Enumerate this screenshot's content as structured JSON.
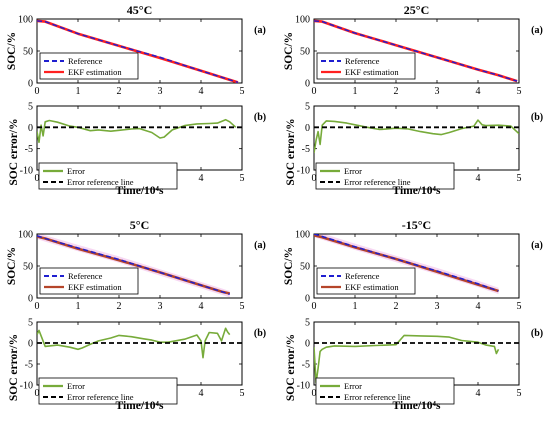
{
  "colors": {
    "reference": "#1f1fd0",
    "ekf_red": "#ff2020",
    "ekf_brown": "#b5452a",
    "error": "#77ab3a",
    "error_ref": "#000000",
    "band": "#f7d8f3"
  },
  "chart_data": [
    {
      "id": "soc_45",
      "type": "line",
      "title": "45°C",
      "tag": "(a)",
      "xlabel": "",
      "ylabel": "SOC/%",
      "xlim": [
        0,
        5
      ],
      "ylim": [
        0,
        100
      ],
      "xticks": [
        "0",
        "1",
        "2",
        "3",
        "4",
        "5"
      ],
      "yticks": [
        "0",
        "50",
        "100"
      ],
      "legend": "bottom-left",
      "grid": false,
      "band": false,
      "series": [
        {
          "name": "Reference",
          "style": "dashed",
          "color": "#1f1fd0",
          "x": [
            0,
            0.2,
            1,
            2,
            3,
            4,
            4.5,
            4.9
          ],
          "y": [
            97,
            96,
            77,
            58,
            40,
            19,
            9,
            1
          ]
        },
        {
          "name": "EKF estimation",
          "style": "solid",
          "color": "#ff2020",
          "x": [
            0,
            0.2,
            1,
            2,
            3,
            4,
            4.5,
            4.9
          ],
          "y": [
            97,
            96,
            77,
            58,
            39,
            19,
            9,
            1
          ]
        }
      ]
    },
    {
      "id": "err_45",
      "type": "line",
      "title": "",
      "tag": "(b)",
      "xlabel": "Time/10⁴s",
      "ylabel": "SOC error/%",
      "xlim": [
        0,
        5
      ],
      "ylim": [
        -10,
        5
      ],
      "xticks": [
        "0",
        "1",
        "2",
        "3",
        "4",
        "5"
      ],
      "yticks": [
        "-10",
        "-5",
        "0",
        "5"
      ],
      "legend": "bottom-left",
      "grid": false,
      "series": [
        {
          "name": "Error",
          "style": "solid",
          "color": "#77ab3a",
          "x": [
            0,
            0.05,
            0.1,
            0.15,
            0.2,
            0.3,
            0.5,
            0.8,
            1.0,
            1.3,
            1.5,
            1.8,
            2.0,
            2.3,
            2.5,
            2.8,
            3.0,
            3.1,
            3.3,
            3.6,
            3.9,
            4.2,
            4.4,
            4.6,
            4.7,
            4.85
          ],
          "y": [
            -1,
            -3.5,
            0.5,
            -2,
            1.3,
            1.6,
            1.2,
            0.3,
            0,
            -0.8,
            -0.6,
            -0.9,
            -0.7,
            -0.4,
            -0.3,
            -1.2,
            -2.5,
            -2.3,
            -0.6,
            0.4,
            0.8,
            0.9,
            1.0,
            1.8,
            1.3,
            0
          ]
        },
        {
          "name": "Error reference line",
          "style": "dashed",
          "color": "#000000",
          "x": [
            0,
            5
          ],
          "y": [
            0,
            0
          ]
        }
      ]
    },
    {
      "id": "soc_25",
      "type": "line",
      "title": "25°C",
      "tag": "(a)",
      "xlabel": "",
      "ylabel": "SOC/%",
      "xlim": [
        0,
        5
      ],
      "ylim": [
        0,
        100
      ],
      "xticks": [
        "0",
        "1",
        "2",
        "3",
        "4",
        "5"
      ],
      "yticks": [
        "0",
        "50",
        "100"
      ],
      "legend": "bottom-left",
      "grid": false,
      "band": false,
      "series": [
        {
          "name": "Reference",
          "style": "dashed",
          "color": "#1f1fd0",
          "x": [
            0,
            0.2,
            1,
            2,
            3,
            4,
            4.5,
            4.95
          ],
          "y": [
            97,
            96,
            78,
            59,
            40,
            21,
            12,
            3
          ]
        },
        {
          "name": "EKF estimation",
          "style": "solid",
          "color": "#ff2020",
          "x": [
            0,
            0.2,
            1,
            2,
            3,
            4,
            4.5,
            4.95
          ],
          "y": [
            97,
            96,
            78,
            59,
            40,
            21,
            12,
            3
          ]
        }
      ]
    },
    {
      "id": "err_25",
      "type": "line",
      "title": "",
      "tag": "(b)",
      "xlabel": "Time/10⁴s",
      "ylabel": "SOC error/%",
      "xlim": [
        0,
        5
      ],
      "ylim": [
        -10,
        5
      ],
      "xticks": [
        "0",
        "1",
        "2",
        "3",
        "4",
        "5"
      ],
      "yticks": [
        "-10",
        "-5",
        "0",
        "5"
      ],
      "legend": "bottom-left",
      "grid": false,
      "series": [
        {
          "name": "Error",
          "style": "solid",
          "color": "#77ab3a",
          "x": [
            0,
            0.05,
            0.1,
            0.15,
            0.2,
            0.3,
            0.5,
            0.8,
            1.0,
            1.3,
            1.6,
            2.0,
            2.3,
            2.6,
            2.9,
            3.1,
            3.3,
            3.6,
            3.9,
            4.0,
            4.1,
            4.2,
            4.5,
            4.8,
            5.0
          ],
          "y": [
            -6,
            -3,
            -1,
            -4,
            0.5,
            1.5,
            1.4,
            1.0,
            0.6,
            0,
            -0.5,
            -0.2,
            -0.4,
            -1.0,
            -1.5,
            -1.7,
            -1.2,
            -0.3,
            0.3,
            1.7,
            0.6,
            0.4,
            0.5,
            0.3,
            -1.5
          ]
        },
        {
          "name": "Error reference line",
          "style": "dashed",
          "color": "#000000",
          "x": [
            0,
            5
          ],
          "y": [
            0,
            0
          ]
        }
      ]
    },
    {
      "id": "soc_5",
      "type": "line",
      "title": "5°C",
      "tag": "(a)",
      "xlabel": "",
      "ylabel": "SOC/%",
      "xlim": [
        0,
        5
      ],
      "ylim": [
        0,
        100
      ],
      "xticks": [
        "0",
        "1",
        "2",
        "3",
        "4",
        "5"
      ],
      "yticks": [
        "0",
        "50",
        "100"
      ],
      "legend": "bottom-left",
      "grid": false,
      "band": true,
      "series": [
        {
          "name": "Reference",
          "style": "dashed",
          "color": "#1f1fd0",
          "x": [
            0,
            0.2,
            1,
            2,
            3,
            4,
            4.5,
            4.7
          ],
          "y": [
            97,
            93,
            78,
            60,
            40,
            20,
            10,
            6
          ]
        },
        {
          "name": "EKF estimation",
          "style": "solid",
          "color": "#b5452a",
          "x": [
            0,
            0.2,
            1,
            2,
            3,
            4,
            4.5,
            4.7
          ],
          "y": [
            96,
            93,
            77,
            59,
            40,
            20,
            10,
            7
          ]
        }
      ]
    },
    {
      "id": "err_5",
      "type": "line",
      "title": "",
      "tag": "(b)",
      "xlabel": "Time/10⁴s",
      "ylabel": "SOC error/%",
      "xlim": [
        0,
        5
      ],
      "ylim": [
        -10,
        5
      ],
      "xticks": [
        "0",
        "1",
        "2",
        "3",
        "4",
        "5"
      ],
      "yticks": [
        "-10",
        "-5",
        "0",
        "5"
      ],
      "legend": "bottom-left",
      "grid": false,
      "series": [
        {
          "name": "Error",
          "style": "solid",
          "color": "#77ab3a",
          "x": [
            0,
            0.05,
            0.2,
            0.5,
            0.8,
            1.0,
            1.1,
            1.3,
            1.5,
            1.8,
            2.0,
            2.3,
            2.6,
            2.8,
            3.0,
            3.2,
            3.6,
            3.9,
            4.0,
            4.05,
            4.1,
            4.2,
            4.4,
            4.5,
            4.6,
            4.65,
            4.7
          ],
          "y": [
            2,
            3,
            -0.8,
            -0.5,
            -1.0,
            -1.5,
            -1.2,
            -0.3,
            0.5,
            1.2,
            1.8,
            1.5,
            1.0,
            0.7,
            0.2,
            0.2,
            0.9,
            1.9,
            0.5,
            -3.5,
            0.5,
            2.5,
            2.3,
            0.5,
            3.5,
            2.6,
            2.0
          ]
        },
        {
          "name": "Error reference line",
          "style": "dashed",
          "color": "#000000",
          "x": [
            0,
            5
          ],
          "y": [
            0,
            0
          ]
        }
      ]
    },
    {
      "id": "soc_m15",
      "type": "line",
      "title": "-15°C",
      "tag": "(a)",
      "xlabel": "",
      "ylabel": "SOC/%",
      "xlim": [
        0,
        5
      ],
      "ylim": [
        0,
        100
      ],
      "xticks": [
        "0",
        "1",
        "2",
        "3",
        "4",
        "5"
      ],
      "yticks": [
        "0",
        "50",
        "100"
      ],
      "legend": "bottom-left",
      "grid": false,
      "band": true,
      "series": [
        {
          "name": "Reference",
          "style": "dashed",
          "color": "#1f1fd0",
          "x": [
            0,
            0.2,
            1,
            2,
            3,
            4,
            4.5
          ],
          "y": [
            100,
            96,
            80,
            61,
            42,
            22,
            11
          ]
        },
        {
          "name": "EKF estimation",
          "style": "solid",
          "color": "#b5452a",
          "x": [
            0,
            0.2,
            1,
            2,
            3,
            4,
            4.5
          ],
          "y": [
            98,
            95,
            79,
            61,
            41,
            21,
            11
          ]
        }
      ]
    },
    {
      "id": "err_m15",
      "type": "line",
      "title": "",
      "tag": "(b)",
      "xlabel": "Time/10⁴s",
      "ylabel": "SOC error/%",
      "xlim": [
        0,
        5
      ],
      "ylim": [
        -10,
        5
      ],
      "xticks": [
        "0",
        "1",
        "2",
        "3",
        "4",
        "5"
      ],
      "yticks": [
        "-10",
        "-5",
        "0",
        "5"
      ],
      "legend": "bottom-left",
      "grid": false,
      "series": [
        {
          "name": "Error",
          "style": "solid",
          "color": "#77ab3a",
          "x": [
            0,
            0.05,
            0.1,
            0.15,
            0.2,
            0.3,
            0.5,
            1.0,
            1.5,
            2.0,
            2.2,
            2.6,
            3.0,
            3.3,
            3.6,
            4.0,
            4.2,
            4.4,
            4.45,
            4.5
          ],
          "y": [
            -1,
            -9.5,
            -6,
            -2,
            -1.5,
            -1,
            -0.7,
            -0.8,
            -0.6,
            -0.4,
            1.8,
            1.7,
            1.6,
            1.4,
            0.6,
            0.2,
            -0.5,
            -0.8,
            -2.5,
            -1.5
          ]
        },
        {
          "name": "Error reference line",
          "style": "dashed",
          "color": "#000000",
          "x": [
            0,
            5
          ],
          "y": [
            0,
            0
          ]
        }
      ]
    }
  ]
}
